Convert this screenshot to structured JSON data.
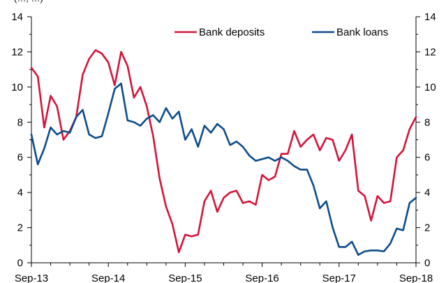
{
  "chart_data": {
    "type": "line",
    "title": "",
    "top_cut_text": "(…, …)",
    "xlabel": "",
    "ylabel": "",
    "ylim": [
      0,
      14
    ],
    "yticks": [
      0,
      2,
      4,
      6,
      8,
      10,
      12,
      14
    ],
    "ytick_labels": [
      "0",
      "2",
      "4",
      "6",
      "8",
      "10",
      "12",
      "14"
    ],
    "right_axis": true,
    "x_start": "2013-09",
    "x_end": "2018-09",
    "xticks": [
      "2013-09",
      "2014-09",
      "2015-09",
      "2016-09",
      "2017-09",
      "2018-09"
    ],
    "xtick_labels": [
      "Sep-13",
      "Sep-14",
      "Sep-15",
      "Sep-16",
      "Sep-17",
      "Sep-18"
    ],
    "grid": false,
    "legend": {
      "placement": "top-right",
      "orientation": "horizontal"
    },
    "series": [
      {
        "name": "Bank deposits",
        "color": "#d2143a",
        "x": [
          "2013-09",
          "2013-10",
          "2013-11",
          "2013-12",
          "2014-01",
          "2014-02",
          "2014-03",
          "2014-04",
          "2014-05",
          "2014-06",
          "2014-07",
          "2014-08",
          "2014-09",
          "2014-10",
          "2014-11",
          "2014-12",
          "2015-01",
          "2015-02",
          "2015-03",
          "2015-04",
          "2015-05",
          "2015-06",
          "2015-07",
          "2015-08",
          "2015-09",
          "2015-10",
          "2015-11",
          "2015-12",
          "2016-01",
          "2016-02",
          "2016-03",
          "2016-04",
          "2016-05",
          "2016-06",
          "2016-07",
          "2016-08",
          "2016-09",
          "2016-10",
          "2016-11",
          "2016-12",
          "2017-01",
          "2017-02",
          "2017-03",
          "2017-04",
          "2017-05",
          "2017-06",
          "2017-07",
          "2017-08",
          "2017-09",
          "2017-10",
          "2017-11",
          "2017-12",
          "2018-01",
          "2018-02",
          "2018-03",
          "2018-04",
          "2018-05",
          "2018-06",
          "2018-07",
          "2018-08",
          "2018-09"
        ],
        "values": [
          11.1,
          10.6,
          7.7,
          9.5,
          8.9,
          7.0,
          7.5,
          8.3,
          10.7,
          11.6,
          12.1,
          11.9,
          11.4,
          10.1,
          12.0,
          11.2,
          9.4,
          10.0,
          8.9,
          7.2,
          4.8,
          3.2,
          2.2,
          0.6,
          1.6,
          1.5,
          1.6,
          3.5,
          4.1,
          2.9,
          3.7,
          4.0,
          4.1,
          3.4,
          3.5,
          3.3,
          5.0,
          4.7,
          4.9,
          6.2,
          6.2,
          7.5,
          6.6,
          7.0,
          7.3,
          6.4,
          7.1,
          7.0,
          5.8,
          6.4,
          7.3,
          4.1,
          3.8,
          2.4,
          3.8,
          3.4,
          3.5,
          6.0,
          6.4,
          7.6,
          8.3
        ]
      },
      {
        "name": "Bank loans",
        "color": "#0d4c8a",
        "x": [
          "2013-09",
          "2013-10",
          "2013-11",
          "2013-12",
          "2014-01",
          "2014-02",
          "2014-03",
          "2014-04",
          "2014-05",
          "2014-06",
          "2014-07",
          "2014-08",
          "2014-09",
          "2014-10",
          "2014-11",
          "2014-12",
          "2015-01",
          "2015-02",
          "2015-03",
          "2015-04",
          "2015-05",
          "2015-06",
          "2015-07",
          "2015-08",
          "2015-09",
          "2015-10",
          "2015-11",
          "2015-12",
          "2016-01",
          "2016-02",
          "2016-03",
          "2016-04",
          "2016-05",
          "2016-06",
          "2016-07",
          "2016-08",
          "2016-09",
          "2016-10",
          "2016-11",
          "2016-12",
          "2017-01",
          "2017-02",
          "2017-03",
          "2017-04",
          "2017-05",
          "2017-06",
          "2017-07",
          "2017-08",
          "2017-09",
          "2017-10",
          "2017-11",
          "2017-12",
          "2018-01",
          "2018-02",
          "2018-03",
          "2018-04",
          "2018-05",
          "2018-06",
          "2018-07",
          "2018-08",
          "2018-09"
        ],
        "values": [
          7.3,
          5.6,
          6.5,
          7.7,
          7.3,
          7.5,
          7.4,
          8.3,
          8.7,
          7.3,
          7.1,
          7.2,
          8.5,
          9.9,
          10.2,
          8.1,
          8.0,
          7.8,
          8.2,
          8.4,
          8.0,
          8.8,
          8.2,
          8.6,
          7.0,
          7.6,
          6.6,
          7.8,
          7.4,
          7.9,
          7.6,
          6.7,
          6.9,
          6.6,
          6.1,
          5.8,
          5.9,
          6.0,
          5.8,
          6.0,
          5.8,
          5.5,
          5.3,
          5.3,
          4.4,
          3.1,
          3.5,
          2.0,
          0.9,
          0.9,
          1.2,
          0.45,
          0.65,
          0.7,
          0.7,
          0.65,
          1.1,
          1.95,
          1.85,
          3.4,
          3.7
        ]
      }
    ]
  }
}
